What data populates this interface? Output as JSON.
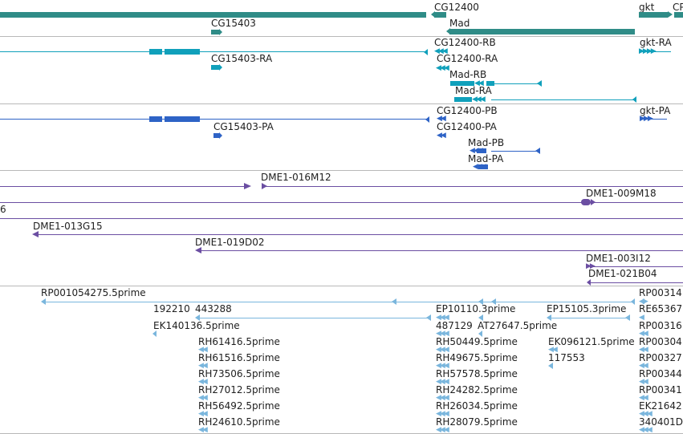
{
  "colors": {
    "gene": "#2f8c87",
    "transcript": "#10a0bb",
    "cds": "#2e63c6",
    "clone": "#6b4ea2",
    "est": "#7ab6dd",
    "separator": "#b8b8b8"
  },
  "tracks": {
    "genes": {
      "labels": [
        "CG12400",
        "CP",
        "gkt",
        "CG15403",
        "Mad"
      ]
    },
    "transcripts": {
      "labels": [
        "CG12400-RB",
        "gkt-RA",
        "CG15403-RA",
        "CG12400-RA",
        "Mad-RB",
        "Mad-RA"
      ]
    },
    "proteins": {
      "labels": [
        "CG12400-PB",
        "gkt-PA",
        "CG15403-PA",
        "CG12400-PA",
        "Mad-PB",
        "Mad-PA"
      ]
    },
    "clones": {
      "labels": [
        "DME1-016M12",
        "DME1-009M18",
        "6",
        "DME1-013G15",
        "DME1-019D02",
        "DME1-003I12",
        "DME1-021B04"
      ]
    },
    "ests": {
      "labels": [
        "RP001054275.5prime",
        "RP00314",
        "192210",
        "443288",
        "EP10110.3prime",
        "EP15105.3prime",
        "RE65367",
        "EK140136.5prime",
        "487129",
        "AT27647.5prime",
        "RP00316",
        "RH61416.5prime",
        "RH50449.5prime",
        "EK096121.5prime",
        "RP00304",
        "RH61516.5prime",
        "RH49675.5prime",
        "117553",
        "RP00327",
        "RH73506.5prime",
        "RH57578.5prime",
        "RP00344",
        "RH27012.5prime",
        "RH24282.5prime",
        "RP00341",
        "RH56492.5prime",
        "RH26034.5prime",
        "EK21642",
        "RH24610.5prime",
        "RH28079.5prime",
        "340401D"
      ]
    }
  }
}
